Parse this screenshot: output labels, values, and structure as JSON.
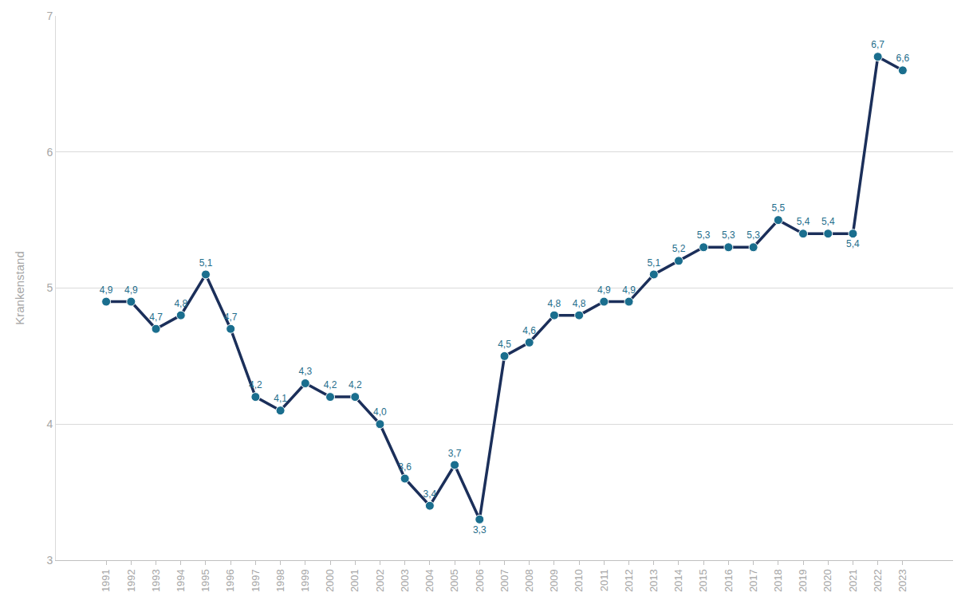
{
  "chart_data": {
    "type": "line",
    "y_label": "Krankenstand",
    "categories": [
      "1991",
      "1992",
      "1993",
      "1994",
      "1995",
      "1996",
      "1997",
      "1998",
      "1999",
      "2000",
      "2001",
      "2002",
      "2003",
      "2004",
      "2005",
      "2006",
      "2007",
      "2008",
      "2009",
      "2010",
      "2011",
      "2012",
      "2013",
      "2014",
      "2015",
      "2016",
      "2017",
      "2018",
      "2019",
      "2020",
      "2021",
      "2022",
      "2023"
    ],
    "values": [
      4.9,
      4.9,
      4.7,
      4.8,
      5.1,
      4.7,
      4.2,
      4.1,
      4.3,
      4.2,
      4.2,
      4.0,
      3.6,
      3.4,
      3.7,
      3.3,
      4.5,
      4.6,
      4.8,
      4.8,
      4.9,
      4.9,
      5.1,
      5.2,
      5.3,
      5.3,
      5.3,
      5.5,
      5.4,
      5.4,
      5.4,
      6.7,
      6.6
    ],
    "value_labels": [
      "4,9",
      "4,9",
      "4,7",
      "4,8",
      "5,1",
      "4,7",
      "4,2",
      "4,1",
      "4,3",
      "4,2",
      "4,2",
      "4,0",
      "3,6",
      "3,4",
      "3,7",
      "3,3",
      "4,5",
      "4,6",
      "4,8",
      "4,8",
      "4,9",
      "4,9",
      "5,1",
      "5,2",
      "5,3",
      "5,3",
      "5,3",
      "5,5",
      "5,4",
      "5,4",
      "5,4",
      "6,7",
      "6,6"
    ],
    "color": "#1b2f5a",
    "marker": "circle",
    "ylim": [
      3,
      7
    ],
    "yticks": [
      3,
      4,
      5,
      6,
      7
    ],
    "grid": true,
    "data_labels": true
  }
}
